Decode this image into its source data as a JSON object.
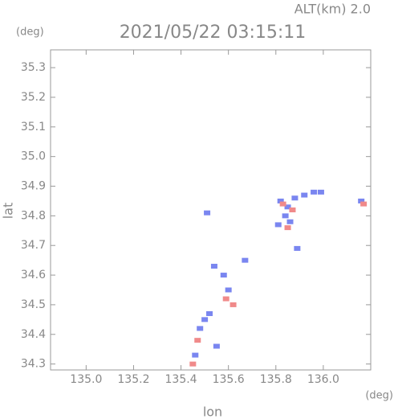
{
  "chart_data": {
    "type": "scatter",
    "title": "2021/05/22 03:15:11",
    "altitude_label": "ALT(km) 2.0",
    "y_unit": "(deg)",
    "x_unit": "(deg)",
    "x_label": "lon",
    "y_label": "lat",
    "xlim": [
      134.85,
      136.2
    ],
    "ylim": [
      34.28,
      35.36
    ],
    "xticks": [
      {
        "value": 135.0,
        "label": "135.0"
      },
      135.2,
      135.4,
      135.6,
      135.8,
      {
        "value": 136.0,
        "label": "136.0"
      }
    ],
    "yticks": [
      35.3,
      35.2,
      35.1,
      {
        "value": 35.0,
        "label": "35.0"
      },
      34.9,
      34.8,
      34.7,
      34.6,
      34.5,
      34.4,
      34.3
    ],
    "series": [
      {
        "color": "#7a86f0",
        "x": [
          135.82,
          135.85,
          135.88,
          135.92,
          135.96,
          135.99,
          135.84,
          135.86,
          135.81,
          136.16,
          135.58,
          135.6,
          135.54,
          135.5,
          135.48,
          135.52,
          135.46,
          135.55,
          135.67,
          135.51,
          135.89
        ],
        "values": [
          34.85,
          34.83,
          34.86,
          34.87,
          34.88,
          34.88,
          34.8,
          34.78,
          34.77,
          34.85,
          34.6,
          34.55,
          34.63,
          34.45,
          34.42,
          34.47,
          34.33,
          34.36,
          34.65,
          34.81,
          34.69
        ]
      },
      {
        "color": "#f08a8a",
        "x": [
          135.83,
          135.87,
          135.85,
          135.62,
          135.59,
          135.45,
          135.47,
          136.17
        ],
        "values": [
          34.84,
          34.82,
          34.76,
          34.5,
          34.52,
          34.3,
          34.38,
          34.84
        ]
      }
    ]
  }
}
